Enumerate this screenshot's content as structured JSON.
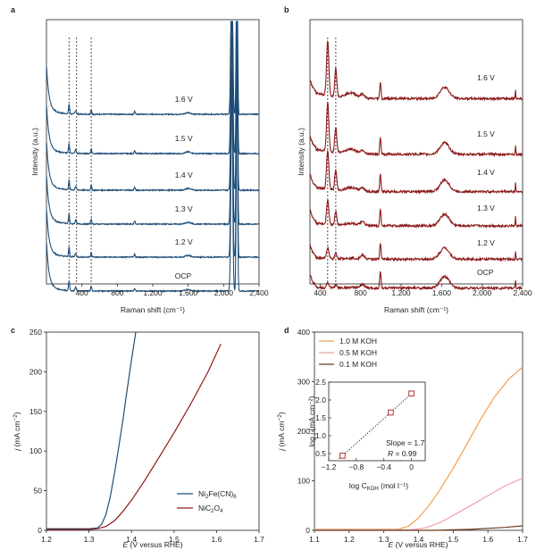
{
  "colors": {
    "panel_a_line": "#1f4e78",
    "panel_b_line": "#8c1a1a",
    "c_nife": "#1f4e78",
    "c_nic2o4": "#8c1a1a",
    "d_1M": "#f0a050",
    "d_05M": "#f0a0a8",
    "d_01M": "#6b3a1a",
    "inset_marker": "#b03030"
  },
  "panels": {
    "a": {
      "letter": "a",
      "xlabel": "Raman shift (cm⁻¹)",
      "ylabel": "Intensity (a.u.)",
      "xlim": [
        0,
        2400
      ],
      "xticks": [
        "400",
        "800",
        "1,200",
        "1,600",
        "2,000",
        "2,400"
      ],
      "traces": [
        "1.6 V",
        "1.5 V",
        "1.4 V",
        "1.3 V",
        "1.2 V",
        "OCP"
      ],
      "dashed_lines_at": [
        255,
        340,
        505
      ]
    },
    "b": {
      "letter": "b",
      "xlabel": "Raman shift (cm⁻¹)",
      "ylabel": "Intensity (a.u.)",
      "xlim": [
        300,
        2400
      ],
      "xticks": [
        "400",
        "800",
        "1,200",
        "1,600",
        "2,000",
        "2,400"
      ],
      "traces": [
        "1.6 V",
        "1.5 V",
        "1.4 V",
        "1.3 V",
        "1.2 V",
        "OCP"
      ],
      "dashed_lines_at": [
        475,
        555
      ]
    },
    "c": {
      "letter": "c"
    },
    "d": {
      "letter": "d"
    }
  },
  "chart_data": [
    {
      "panel": "c",
      "type": "line",
      "xlabel": "E (V versus RHE)",
      "ylabel": "j (mA cm⁻²)",
      "xlim": [
        1.2,
        1.7
      ],
      "ylim": [
        0,
        250
      ],
      "xticks": [
        "1.2",
        "1.3",
        "1.4",
        "1.5",
        "1.6",
        "1.7"
      ],
      "yticks": [
        "0",
        "50",
        "100",
        "150",
        "200",
        "250"
      ],
      "legend_position": "bottom-right",
      "series": [
        {
          "name": "Ni₂Fe(CN)₆",
          "x": [
            1.2,
            1.3,
            1.32,
            1.33,
            1.34,
            1.35,
            1.36,
            1.37,
            1.38,
            1.39,
            1.4,
            1.41
          ],
          "y": [
            2,
            2,
            3,
            8,
            20,
            42,
            72,
            105,
            140,
            178,
            215,
            250
          ]
        },
        {
          "name": "NiC₂O₄",
          "x": [
            1.2,
            1.3,
            1.32,
            1.34,
            1.36,
            1.38,
            1.4,
            1.43,
            1.46,
            1.5,
            1.54,
            1.58,
            1.61
          ],
          "y": [
            1,
            1,
            2,
            5,
            12,
            24,
            38,
            62,
            88,
            123,
            160,
            200,
            235
          ]
        }
      ]
    },
    {
      "panel": "d",
      "type": "line",
      "xlabel": "E (V versus RHE)",
      "ylabel": "j (mA cm⁻²)",
      "xlim": [
        1.1,
        1.7
      ],
      "ylim": [
        0,
        400
      ],
      "xticks": [
        "1.1",
        "1.2",
        "1.3",
        "1.4",
        "1.5",
        "1.6",
        "1.7"
      ],
      "yticks": [
        "0",
        "100",
        "200",
        "300",
        "400"
      ],
      "legend_position": "top-left",
      "series": [
        {
          "name": "1.0 M KOH",
          "x": [
            1.1,
            1.34,
            1.37,
            1.4,
            1.43,
            1.46,
            1.5,
            1.54,
            1.58,
            1.62,
            1.66,
            1.7
          ],
          "y": [
            2,
            2,
            8,
            25,
            50,
            80,
            125,
            175,
            225,
            270,
            305,
            330
          ]
        },
        {
          "name": "0.5 M KOH",
          "x": [
            1.1,
            1.38,
            1.42,
            1.46,
            1.5,
            1.55,
            1.6,
            1.65,
            1.7
          ],
          "y": [
            1,
            1,
            5,
            15,
            30,
            50,
            70,
            90,
            105
          ]
        },
        {
          "name": "0.1 M KOH",
          "x": [
            1.1,
            1.45,
            1.5,
            1.55,
            1.6,
            1.65,
            1.7
          ],
          "y": [
            0,
            0,
            1,
            2,
            4,
            6,
            9
          ]
        }
      ],
      "inset": {
        "type": "scatter",
        "xlabel": "log C",
        "xlabel_sub": "KOH",
        "xlabel_unit": " (mol l⁻¹)",
        "ylabel": "log j (mA cm⁻²)",
        "xlim": [
          -1.2,
          0.2
        ],
        "ylim": [
          0.3,
          2.5
        ],
        "xticks": [
          "-1.2",
          "-0.8",
          "-0.4",
          "0"
        ],
        "yticks": [
          "0.5",
          "1.0",
          "1.5",
          "2.0",
          "2.5"
        ],
        "x": [
          -1.0,
          -0.3,
          0.0
        ],
        "y": [
          0.44,
          1.65,
          2.18
        ],
        "annotation_slope": "Slope = 1.7",
        "annotation_r_symbol": "R",
        "annotation_r_value": " = 0.99"
      }
    }
  ]
}
